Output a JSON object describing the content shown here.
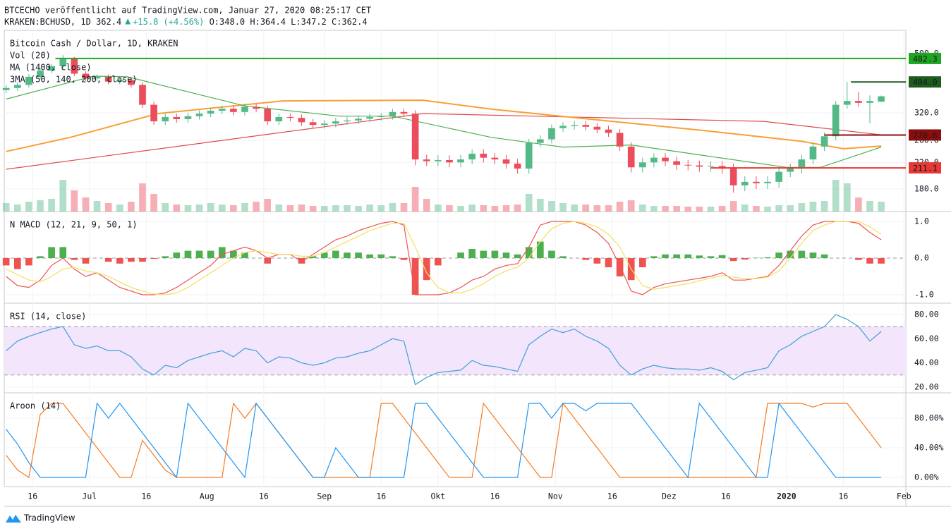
{
  "header": {
    "published": "BTCECHO veröffentlicht auf TradingView.com, Januar 27, 2020 08:25:17 CET",
    "symbol": "KRAKEN:BCHUSD, 1D",
    "last": "362.4",
    "change": "+15.8 (+4.56%)",
    "ohlc": "O:348.0 H:364.4 L:347.2 C:362.4"
  },
  "footer": {
    "brand": "TradingView"
  },
  "x": [
    0,
    3,
    6,
    9,
    12,
    15,
    18,
    21,
    24,
    27,
    30,
    33,
    36,
    39,
    42,
    45,
    48,
    51,
    54,
    57,
    60,
    63,
    66,
    69,
    72,
    75,
    78,
    81,
    84,
    87,
    90,
    93,
    96,
    99,
    102,
    105,
    108,
    111,
    114,
    117,
    120,
    123,
    126,
    129,
    132,
    135,
    138,
    141,
    144,
    147,
    150,
    153,
    156,
    159,
    162,
    165,
    168,
    171,
    174,
    177,
    180,
    183,
    186,
    189,
    192,
    195,
    198,
    201,
    204,
    207,
    210,
    213,
    216,
    219,
    222,
    225,
    228,
    231
  ],
  "xlim": [
    -0.5,
    237.5
  ],
  "xticks": [
    {
      "value": 7,
      "label": "16"
    },
    {
      "value": 22,
      "label": "Jul"
    },
    {
      "value": 37,
      "label": "16"
    },
    {
      "value": 53,
      "label": "Aug"
    },
    {
      "value": 68,
      "label": "16"
    },
    {
      "value": 84,
      "label": "Sep"
    },
    {
      "value": 99,
      "label": "16"
    },
    {
      "value": 114,
      "label": "Okt"
    },
    {
      "value": 129,
      "label": "16"
    },
    {
      "value": 145,
      "label": "Nov"
    },
    {
      "value": 160,
      "label": "16"
    },
    {
      "value": 175,
      "label": "Dez"
    },
    {
      "value": 190,
      "label": "16"
    },
    {
      "value": 206,
      "label": "2020",
      "bold": true
    },
    {
      "value": 221,
      "label": "16"
    },
    {
      "value": 237,
      "label": "Feb"
    }
  ],
  "chart_data": [
    {
      "type": "candlestick",
      "title": "Bitcoin Cash / Dollar, 1D, KRAKEN",
      "indicators": [
        "Vol (20)",
        "MA (1400, close)",
        "3MA (50, 140, 200, close)"
      ],
      "log": true,
      "ylim": [
        151.8,
        596.6
      ],
      "yticks": [
        {
          "value": 180,
          "label": "180.0"
        },
        {
          "value": 220,
          "label": "220.0"
        },
        {
          "value": 260,
          "label": "260.0"
        },
        {
          "value": 320,
          "label": "320.0"
        },
        {
          "value": 500,
          "label": "500.0"
        }
      ],
      "up_color": "#53b987",
      "down_color": "#eb4d5c",
      "open": [
        380,
        386,
        395,
        420,
        440,
        455,
        480,
        430,
        415,
        420,
        405,
        410,
        395,
        340,
        300,
        310,
        305,
        312,
        318,
        325,
        330,
        322,
        335,
        330,
        300,
        310,
        308,
        298,
        292,
        295,
        300,
        302,
        306,
        310,
        312,
        322,
        318,
        225,
        222,
        224,
        220,
        225,
        235,
        228,
        225,
        218,
        210,
        255,
        262,
        285,
        290,
        292,
        288,
        282,
        275,
        248,
        212,
        220,
        228,
        222,
        216,
        215,
        213,
        214,
        210,
        185,
        190,
        188,
        190,
        205,
        210,
        225,
        248,
        268,
        340,
        350,
        345,
        348
      ],
      "high": [
        394,
        403,
        428,
        448,
        463,
        495,
        488,
        438,
        428,
        428,
        418,
        418,
        403,
        348,
        318,
        318,
        320,
        326,
        333,
        338,
        338,
        343,
        343,
        338,
        318,
        318,
        316,
        306,
        303,
        308,
        310,
        314,
        318,
        320,
        330,
        330,
        326,
        233,
        232,
        232,
        233,
        243,
        243,
        236,
        233,
        226,
        263,
        270,
        293,
        298,
        300,
        300,
        296,
        290,
        283,
        256,
        228,
        236,
        236,
        230,
        224,
        223,
        222,
        222,
        218,
        198,
        198,
        198,
        213,
        218,
        233,
        256,
        276,
        350,
        404,
        375,
        365,
        364.4
      ],
      "low": [
        372,
        378,
        387,
        412,
        432,
        447,
        422,
        407,
        407,
        397,
        397,
        387,
        332,
        292,
        292,
        297,
        297,
        304,
        310,
        317,
        314,
        314,
        322,
        292,
        292,
        300,
        290,
        284,
        284,
        287,
        292,
        294,
        298,
        302,
        304,
        310,
        215,
        214,
        214,
        212,
        212,
        217,
        220,
        217,
        210,
        202,
        202,
        247,
        254,
        277,
        282,
        280,
        274,
        267,
        240,
        204,
        204,
        212,
        214,
        208,
        207,
        205,
        205,
        202,
        175,
        177,
        180,
        180,
        182,
        197,
        202,
        217,
        240,
        260,
        330,
        335,
        296,
        347.2
      ],
      "close": [
        386,
        395,
        420,
        440,
        455,
        480,
        430,
        415,
        420,
        405,
        410,
        395,
        340,
        300,
        310,
        305,
        312,
        318,
        325,
        330,
        322,
        335,
        330,
        300,
        310,
        308,
        298,
        292,
        295,
        300,
        302,
        306,
        310,
        312,
        322,
        318,
        225,
        222,
        224,
        220,
        225,
        235,
        228,
        225,
        218,
        210,
        255,
        262,
        285,
        290,
        292,
        288,
        282,
        275,
        248,
        212,
        220,
        228,
        222,
        216,
        215,
        213,
        214,
        210,
        185,
        190,
        188,
        190,
        205,
        210,
        225,
        248,
        268,
        340,
        350,
        345,
        350,
        362.4
      ],
      "volume": [
        12,
        10,
        14,
        16,
        18,
        45,
        30,
        20,
        15,
        12,
        10,
        14,
        40,
        25,
        12,
        10,
        9,
        10,
        12,
        10,
        9,
        12,
        14,
        18,
        10,
        9,
        10,
        8,
        8,
        9,
        9,
        8,
        10,
        9,
        12,
        12,
        35,
        18,
        10,
        9,
        8,
        10,
        9,
        8,
        9,
        10,
        25,
        18,
        15,
        12,
        10,
        10,
        9,
        9,
        14,
        16,
        10,
        8,
        8,
        8,
        7,
        7,
        7,
        8,
        15,
        10,
        8,
        7,
        9,
        9,
        12,
        14,
        15,
        45,
        40,
        20,
        15,
        14
      ],
      "lines": [
        {
          "color": "#e04848",
          "x": [
            0,
            110,
            200,
            231
          ],
          "values": [
            209,
            318,
            300,
            271
          ]
        },
        {
          "color": "#f7a035",
          "x": [
            0,
            17,
            40,
            73,
            110,
            128,
            160,
            184,
            210,
            221,
            231
          ],
          "values": [
            239,
            266,
            318,
            350,
            352,
            329,
            300,
            280,
            258,
            244,
            249
          ]
        },
        {
          "color": "#4caf50",
          "x": [
            0,
            23,
            32,
            63,
            88,
            102,
            128,
            147,
            165,
            184,
            206,
            215,
            231
          ],
          "values": [
            355,
            422,
            420,
            337,
            312,
            312,
            266,
            247,
            251,
            232,
            212,
            212,
            247
          ]
        }
      ],
      "levels": [
        {
          "value": 482.3,
          "from": 13,
          "color": "#1fa51f"
        },
        {
          "value": 404,
          "label": "404.0",
          "from": 223,
          "color": "#1e5c1e"
        },
        {
          "value": 270.6,
          "from": 216,
          "color": "#8b0e0e"
        },
        {
          "value": 211.1,
          "from": 186,
          "color": "#e53935"
        }
      ]
    },
    {
      "type": "macd",
      "title": "N MACD (12, 21, 9, 50, 1)",
      "ylim": [
        -1.231,
        1.269
      ],
      "yticks": [
        {
          "value": 1,
          "label": "1.0"
        },
        {
          "value": 0,
          "label": "0.0"
        },
        {
          "value": -1,
          "label": "-1.0"
        }
      ],
      "up_color": "#4caf50",
      "down_color": "#ef5350",
      "histogram": [
        -0.2,
        -0.3,
        -0.2,
        0.05,
        0.3,
        0.3,
        -0.05,
        -0.15,
        0.0,
        -0.1,
        -0.15,
        -0.1,
        -0.1,
        -0.02,
        0.05,
        0.15,
        0.2,
        0.2,
        0.2,
        0.3,
        0.2,
        0.15,
        0.0,
        -0.15,
        0.0,
        0.0,
        -0.15,
        0.05,
        0.15,
        0.2,
        0.15,
        0.15,
        0.1,
        0.1,
        0.05,
        -0.05,
        -1.0,
        -0.6,
        -0.2,
        0.0,
        0.15,
        0.25,
        0.2,
        0.2,
        0.15,
        0.1,
        0.3,
        0.45,
        0.2,
        0.05,
        0.0,
        -0.05,
        -0.15,
        -0.25,
        -0.5,
        -0.6,
        -0.25,
        0.05,
        0.1,
        0.1,
        0.1,
        0.07,
        0.05,
        0.08,
        -0.08,
        -0.04,
        0.01,
        0.02,
        0.15,
        0.2,
        0.2,
        0.15,
        0.1,
        0.0,
        0.0,
        -0.05,
        -0.15,
        -0.15
      ],
      "series": [
        {
          "color": "#ef5350",
          "values": [
            -0.5,
            -0.75,
            -0.8,
            -0.6,
            -0.2,
            0.0,
            -0.3,
            -0.5,
            -0.4,
            -0.6,
            -0.8,
            -0.9,
            -1.0,
            -1.0,
            -0.95,
            -0.8,
            -0.6,
            -0.4,
            -0.2,
            0.1,
            0.2,
            0.3,
            0.2,
            0.0,
            0.1,
            0.1,
            -0.1,
            0.1,
            0.3,
            0.5,
            0.6,
            0.75,
            0.85,
            0.95,
            1.0,
            0.9,
            -1.0,
            -1.0,
            -1.0,
            -0.95,
            -0.8,
            -0.6,
            -0.5,
            -0.3,
            -0.2,
            -0.15,
            0.3,
            0.9,
            1.0,
            1.0,
            1.0,
            0.9,
            0.7,
            0.4,
            -0.2,
            -0.9,
            -1.0,
            -0.8,
            -0.7,
            -0.65,
            -0.6,
            -0.55,
            -0.5,
            -0.4,
            -0.6,
            -0.6,
            -0.55,
            -0.5,
            -0.2,
            0.2,
            0.6,
            0.9,
            1.0,
            1.0,
            1.0,
            0.95,
            0.7,
            0.5
          ]
        },
        {
          "color": "#f2e15e",
          "values": [
            -0.3,
            -0.45,
            -0.6,
            -0.65,
            -0.5,
            -0.3,
            -0.25,
            -0.35,
            -0.4,
            -0.5,
            -0.65,
            -0.8,
            -0.9,
            -0.98,
            -1.0,
            -0.95,
            -0.8,
            -0.6,
            -0.4,
            -0.2,
            0.0,
            0.15,
            0.2,
            0.15,
            0.1,
            0.1,
            0.05,
            0.05,
            0.15,
            0.3,
            0.45,
            0.6,
            0.75,
            0.85,
            0.95,
            0.95,
            0.3,
            -0.4,
            -0.8,
            -0.95,
            -0.95,
            -0.85,
            -0.7,
            -0.5,
            -0.35,
            -0.25,
            0.0,
            0.45,
            0.8,
            0.95,
            1.0,
            0.95,
            0.85,
            0.65,
            0.3,
            -0.3,
            -0.75,
            -0.85,
            -0.8,
            -0.75,
            -0.7,
            -0.62,
            -0.55,
            -0.48,
            -0.52,
            -0.56,
            -0.56,
            -0.52,
            -0.35,
            0.0,
            0.4,
            0.75,
            0.9,
            1.0,
            1.0,
            1.0,
            0.85,
            0.65
          ]
        }
      ]
    },
    {
      "type": "line",
      "title": "RSI (14, close)",
      "ylim": [
        15.3,
        89.3
      ],
      "yticks": [
        {
          "value": 20,
          "label": "20.00"
        },
        {
          "value": 40,
          "label": "40.00"
        },
        {
          "value": 60,
          "label": "60.00"
        },
        {
          "value": 80,
          "label": "80.00"
        }
      ],
      "band": [
        30,
        70
      ],
      "band_color": "#f3e5fb",
      "series": [
        {
          "color": "#3fa0d8",
          "values": [
            50,
            58,
            62,
            65,
            68,
            70,
            55,
            52,
            54,
            50,
            50,
            45,
            35,
            30,
            38,
            36,
            42,
            45,
            48,
            50,
            45,
            52,
            50,
            40,
            45,
            44,
            40,
            38,
            40,
            44,
            45,
            48,
            50,
            55,
            60,
            58,
            22,
            28,
            32,
            33,
            34,
            42,
            38,
            37,
            35,
            33,
            55,
            62,
            68,
            65,
            68,
            62,
            58,
            52,
            38,
            30,
            35,
            38,
            36,
            35,
            35,
            34,
            36,
            33,
            26,
            32,
            34,
            36,
            50,
            55,
            62,
            66,
            70,
            80,
            76,
            70,
            58,
            66
          ]
        }
      ]
    },
    {
      "type": "line",
      "title": "Aroon (14)",
      "ylim": [
        -12.4,
        114.3
      ],
      "yticks": [
        {
          "value": 0,
          "label": "0.00%"
        },
        {
          "value": 40,
          "label": "40.00%"
        },
        {
          "value": 80,
          "label": "80.00%"
        }
      ],
      "series": [
        {
          "color": "#f57c20",
          "values": [
            30,
            10,
            0,
            85,
            100,
            100,
            80,
            60,
            40,
            20,
            0,
            0,
            50,
            30,
            10,
            0,
            0,
            0,
            0,
            0,
            100,
            80,
            100,
            80,
            60,
            40,
            20,
            0,
            0,
            0,
            0,
            0,
            0,
            100,
            100,
            80,
            60,
            40,
            20,
            0,
            0,
            0,
            100,
            80,
            60,
            40,
            20,
            0,
            0,
            100,
            80,
            60,
            40,
            20,
            0,
            0,
            0,
            0,
            0,
            0,
            0,
            0,
            0,
            0,
            0,
            0,
            0,
            100,
            100,
            100,
            100,
            95,
            100,
            100,
            100,
            80,
            60,
            40
          ]
        },
        {
          "color": "#2196f3",
          "values": [
            65,
            45,
            20,
            0,
            0,
            0,
            0,
            0,
            100,
            80,
            100,
            80,
            60,
            40,
            20,
            0,
            100,
            80,
            60,
            40,
            20,
            0,
            100,
            80,
            60,
            40,
            20,
            0,
            0,
            40,
            20,
            0,
            0,
            0,
            0,
            0,
            100,
            100,
            80,
            60,
            40,
            20,
            0,
            0,
            0,
            0,
            100,
            100,
            80,
            100,
            100,
            90,
            100,
            100,
            100,
            100,
            80,
            60,
            40,
            20,
            0,
            100,
            80,
            60,
            40,
            20,
            0,
            0,
            100,
            80,
            60,
            40,
            20,
            0,
            0,
            0,
            0,
            0
          ]
        }
      ]
    }
  ]
}
